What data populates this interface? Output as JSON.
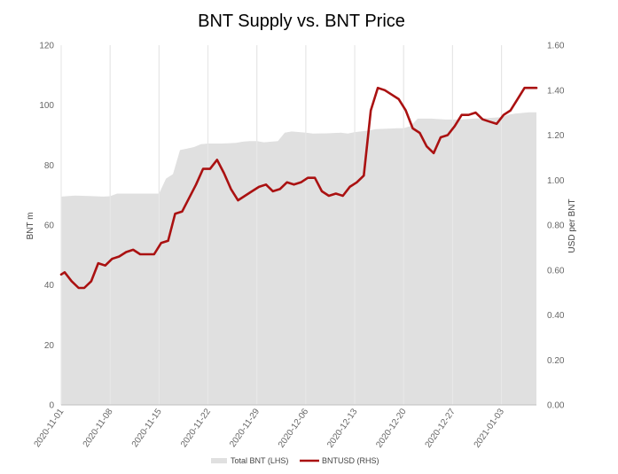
{
  "chart_data": {
    "type": "area+line",
    "title": "BNT Supply vs. BNT Price",
    "ylabel_left": "BNT m",
    "ylabel_right": "USD per BNT",
    "ylim_left": [
      0,
      120
    ],
    "ylim_right": [
      0.0,
      1.6
    ],
    "left_ticks": [
      "0",
      "20",
      "40",
      "60",
      "80",
      "100",
      "120"
    ],
    "right_ticks": [
      "0.00",
      "0.20",
      "0.40",
      "0.60",
      "0.80",
      "1.00",
      "1.20",
      "1.40",
      "1.60"
    ],
    "x_ticks": [
      "2020-11-01",
      "2020-11-08",
      "2020-11-15",
      "2020-11-22",
      "2020-11-29",
      "2020-12-06",
      "2020-12-13",
      "2020-12-20",
      "2020-12-27",
      "2021-01-03"
    ],
    "x_tick_days": [
      0,
      7,
      14,
      21,
      28,
      35,
      42,
      49,
      56,
      63
    ],
    "x_range_days": [
      0,
      68
    ],
    "grid": "vertical",
    "legend_position": "bottom-center",
    "series": [
      {
        "name": "Total BNT (LHS)",
        "kind": "area",
        "axis": "left",
        "color": "#e0e0e0",
        "days": [
          0,
          2,
          4,
          6,
          7,
          8,
          14,
          15,
          16,
          17,
          18,
          19,
          20,
          21,
          23,
          25,
          26,
          27,
          28,
          29,
          31,
          32,
          33,
          35,
          36,
          38,
          40,
          41,
          42,
          44,
          45,
          47,
          48,
          49,
          50,
          51,
          53,
          55,
          57,
          59,
          61,
          63,
          64,
          65,
          67,
          68
        ],
        "values": [
          69.5,
          69.8,
          69.7,
          69.5,
          69.6,
          70.5,
          70.5,
          75.5,
          77,
          85,
          85.5,
          86,
          87,
          87.2,
          87.2,
          87.4,
          87.8,
          88,
          88,
          87.6,
          88,
          90.8,
          91.2,
          90.8,
          90.5,
          90.6,
          90.8,
          90.5,
          91,
          91.5,
          92,
          92.2,
          92.3,
          92.3,
          93,
          95.5,
          95.5,
          95.2,
          95.2,
          95.5,
          95.7,
          96,
          96.8,
          97.2,
          97.6,
          97.6
        ]
      },
      {
        "name": "BNTUSD (RHS)",
        "kind": "line",
        "axis": "right",
        "color": "#aa1111",
        "days": [
          0,
          0.5,
          1.5,
          2.5,
          3.3,
          4.3,
          5.3,
          6.3,
          7.3,
          8.3,
          9.3,
          10.3,
          11.3,
          12.3,
          13.3,
          14.3,
          15.3,
          16.3,
          17.3,
          19.3,
          20.3,
          21.3,
          22.3,
          23.3,
          24.3,
          25.3,
          26.3,
          27.3,
          28.3,
          29.3,
          30.3,
          31.3,
          32.3,
          33.3,
          34.3,
          35.3,
          36.3,
          37.3,
          38.3,
          39.3,
          40.3,
          41.3,
          42.3,
          43.3,
          44.3,
          45.3,
          46.3,
          47.3,
          48.3,
          49.3,
          50.3,
          51.3,
          52.3,
          53.3,
          54.3,
          55.3,
          56.3,
          57.3,
          58.3,
          59.3,
          60.3,
          61.3,
          62.3,
          63.3,
          64.3,
          65.3,
          66.3,
          68
        ],
        "values": [
          0.58,
          0.59,
          0.55,
          0.52,
          0.52,
          0.55,
          0.63,
          0.62,
          0.65,
          0.66,
          0.68,
          0.69,
          0.67,
          0.67,
          0.67,
          0.72,
          0.73,
          0.85,
          0.86,
          0.98,
          1.05,
          1.05,
          1.09,
          1.03,
          0.96,
          0.91,
          0.93,
          0.95,
          0.97,
          0.98,
          0.95,
          0.96,
          0.99,
          0.98,
          0.99,
          1.01,
          1.01,
          0.95,
          0.93,
          0.94,
          0.93,
          0.97,
          0.99,
          1.02,
          1.31,
          1.41,
          1.4,
          1.38,
          1.36,
          1.31,
          1.23,
          1.21,
          1.15,
          1.12,
          1.19,
          1.2,
          1.24,
          1.29,
          1.29,
          1.3,
          1.27,
          1.26,
          1.25,
          1.29,
          1.31,
          1.36,
          1.41,
          1.41
        ]
      }
    ]
  }
}
